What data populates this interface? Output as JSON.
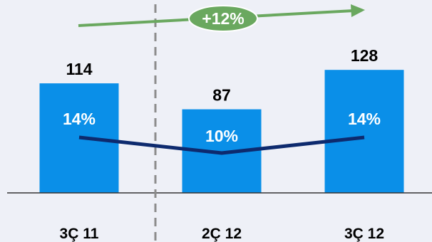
{
  "chart_data": {
    "type": "bar",
    "categories": [
      "3Ç 11",
      "2Ç 12",
      "3Ç 12"
    ],
    "values": [
      114,
      87,
      128
    ],
    "value_labels": [
      "114",
      "87",
      "128"
    ],
    "ylim": [
      0,
      135
    ],
    "line_series": {
      "values": [
        14,
        10,
        14
      ],
      "labels": [
        "14%",
        "10%",
        "14%"
      ],
      "range": [
        0,
        30
      ]
    },
    "growth_annotation": "+12%",
    "grid": false,
    "colors": {
      "bar": "#0a8fe8",
      "line": "#0d2a6e",
      "growth": "#6aa85f",
      "divider": "#8c8c8c",
      "axis": "#333333",
      "background": "#eef0f7"
    }
  }
}
